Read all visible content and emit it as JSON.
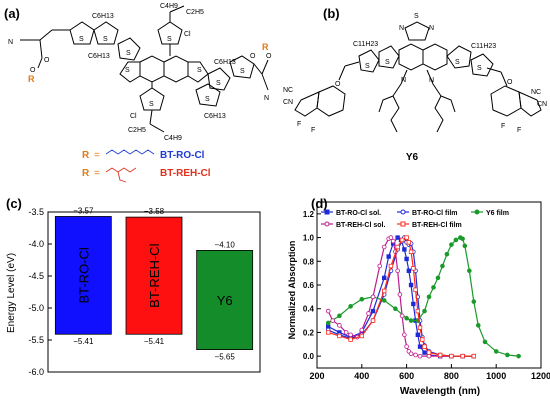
{
  "panels": {
    "a": {
      "label": "(a)",
      "groups": [
        "N",
        "O",
        "O",
        "R",
        "C6H13",
        "C6H13",
        "C4H9",
        "C2H5",
        "Cl",
        "C4H9",
        "C2H5",
        "Cl",
        "C6H13",
        "C6H13",
        "S",
        "S",
        "S",
        "S",
        "S",
        "S",
        "S",
        "S",
        "S",
        "S",
        "O",
        "O",
        "R",
        "N"
      ],
      "r_defs": [
        {
          "symbol": "R",
          "eq": "=",
          "name": "BT-RO-Cl",
          "color": "#1f3bd6"
        },
        {
          "symbol": "R",
          "eq": "=",
          "name": "BT-REH-Cl",
          "color": "#e0301e"
        }
      ]
    },
    "b": {
      "label": "(b)",
      "groups": [
        "S",
        "N",
        "N",
        "C11H23",
        "C11H23",
        "S",
        "S",
        "S",
        "S",
        "N",
        "N",
        "NC",
        "CN",
        "NC",
        "CN",
        "O",
        "O",
        "F",
        "F",
        "F",
        "F"
      ],
      "name": "Y6"
    },
    "c": {
      "label": "(c)",
      "chart_data": {
        "type": "bar",
        "ylabel": "Energy Level (eV)",
        "ylim": [
          -6.0,
          -3.5
        ],
        "yticks": [
          "-3.5",
          "-4.0",
          "-4.5",
          "-5.0",
          "-5.5",
          "-6.0"
        ],
        "bars": [
          {
            "name": "BT-RO-Cl",
            "top": -3.57,
            "bottom": -5.41,
            "top_label": "−3.57",
            "bottom_label": "−5.41",
            "color": "#1010ff"
          },
          {
            "name": "BT-REH-Cl",
            "top": -3.58,
            "bottom": -5.41,
            "top_label": "−3.58",
            "bottom_label": "−5.41",
            "color": "#ff1010"
          },
          {
            "name": "Y6",
            "top": -4.1,
            "bottom": -5.65,
            "top_label": "−4.10",
            "bottom_label": "−5.65",
            "color": "#148c2a"
          }
        ]
      }
    },
    "d": {
      "label": "(d)",
      "chart_data": {
        "type": "line",
        "xlabel": "Wavelength (nm)",
        "ylabel": "Normalized Absorption",
        "xlim": [
          200,
          1200
        ],
        "ylim": [
          -0.1,
          1.3
        ],
        "xticks": [
          200,
          400,
          600,
          800,
          1000,
          1200
        ],
        "yticks": [
          "0.0",
          "0.2",
          "0.4",
          "0.6",
          "0.8",
          "1.0",
          "1.2"
        ],
        "series": [
          {
            "name": "BT-RO-Cl sol.",
            "color": "#1f2bd6",
            "marker": "square",
            "fill": true,
            "x": [
              250,
              300,
              350,
              400,
              450,
              500,
              520,
              540,
              560,
              575,
              590,
              600,
              610,
              620,
              630,
              640,
              650,
              660,
              680,
              700,
              750,
              800,
              850,
              900
            ],
            "y": [
              0.25,
              0.2,
              0.16,
              0.2,
              0.38,
              0.66,
              0.84,
              0.95,
              1.0,
              0.98,
              0.9,
              0.82,
              0.72,
              0.6,
              0.44,
              0.3,
              0.18,
              0.08,
              0.03,
              0.01,
              0.0,
              0.0,
              0.0,
              0.0
            ]
          },
          {
            "name": "BT-RO-Cl film",
            "color": "#1f2bd6",
            "marker": "circle",
            "fill": false,
            "x": [
              250,
              300,
              350,
              400,
              450,
              500,
              530,
              560,
              580,
              590,
              600,
              610,
              620,
              630,
              640,
              650,
              660,
              670,
              680,
              700,
              750,
              800,
              850,
              900
            ],
            "y": [
              0.22,
              0.18,
              0.15,
              0.18,
              0.3,
              0.52,
              0.72,
              0.9,
              0.97,
              1.0,
              0.96,
              0.94,
              0.95,
              0.88,
              0.72,
              0.5,
              0.3,
              0.16,
              0.09,
              0.04,
              0.01,
              0.0,
              0.0,
              0.0
            ]
          },
          {
            "name": "Y6 film",
            "color": "#1a9a2a",
            "marker": "circle",
            "fill": true,
            "x": [
              250,
              300,
              350,
              400,
              450,
              500,
              550,
              600,
              620,
              650,
              680,
              700,
              720,
              740,
              760,
              780,
              800,
              820,
              840,
              850,
              860,
              880,
              900,
              920,
              950,
              1000,
              1050,
              1100
            ],
            "y": [
              0.28,
              0.34,
              0.42,
              0.48,
              0.5,
              0.47,
              0.4,
              0.32,
              0.3,
              0.3,
              0.38,
              0.5,
              0.58,
              0.66,
              0.76,
              0.86,
              0.94,
              0.98,
              1.0,
              0.99,
              0.93,
              0.72,
              0.46,
              0.26,
              0.12,
              0.04,
              0.01,
              0.0
            ]
          },
          {
            "name": "BT-REH-Cl sol.",
            "color": "#c01a90",
            "marker": "circle",
            "fill": false,
            "x": [
              250,
              270,
              300,
              330,
              350,
              380,
              400,
              430,
              450,
              480,
              500,
              520,
              530,
              540,
              550,
              560,
              570,
              580,
              590,
              600,
              610,
              620,
              640,
              660,
              700,
              750,
              800
            ],
            "y": [
              0.38,
              0.3,
              0.26,
              0.2,
              0.18,
              0.16,
              0.22,
              0.36,
              0.5,
              0.76,
              0.92,
              0.99,
              1.0,
              0.97,
              0.88,
              0.72,
              0.52,
              0.34,
              0.18,
              0.08,
              0.04,
              0.02,
              0.01,
              0.0,
              0.0,
              0.0,
              0.0
            ]
          },
          {
            "name": "BT-REH-Cl film",
            "color": "#ff2a1a",
            "marker": "square",
            "fill": false,
            "x": [
              250,
              300,
              350,
              400,
              450,
              500,
              530,
              560,
              580,
              600,
              610,
              620,
              630,
              640,
              650,
              660,
              670,
              680,
              700,
              750,
              800,
              850,
              900
            ],
            "y": [
              0.2,
              0.17,
              0.14,
              0.17,
              0.3,
              0.55,
              0.76,
              0.92,
              0.98,
              1.0,
              0.96,
              0.88,
              0.74,
              0.56,
              0.38,
              0.24,
              0.14,
              0.08,
              0.03,
              0.01,
              0.0,
              0.0,
              0.0
            ]
          }
        ]
      }
    }
  }
}
